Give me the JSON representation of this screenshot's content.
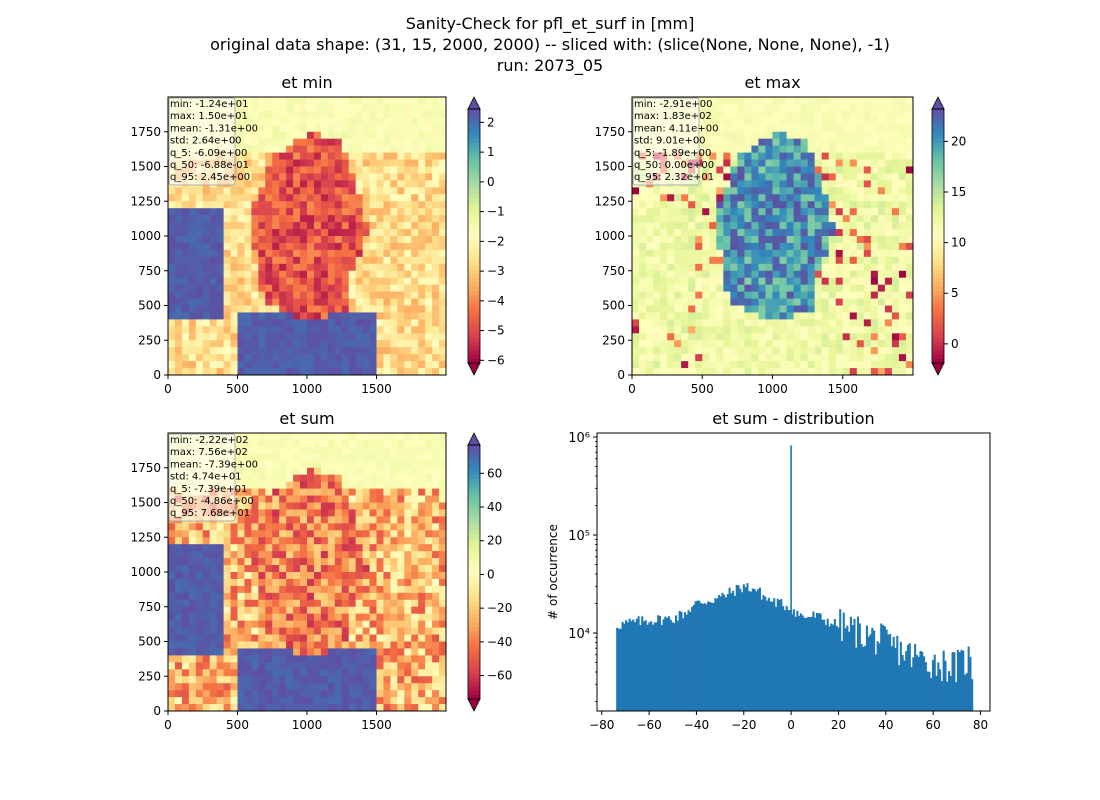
{
  "figure": {
    "title_lines": [
      "Sanity-Check for pfl_et_surf in [mm]",
      "original data shape: (31, 15, 2000, 2000) -- sliced with: (slice(None, None, None), -1)",
      "run: 2073_05"
    ]
  },
  "chart_data": [
    {
      "type": "heatmap",
      "title": "et min",
      "colormap": "Spectral",
      "xticks": [
        0,
        500,
        1000,
        1500
      ],
      "yticks": [
        0,
        250,
        500,
        750,
        1000,
        1250,
        1500,
        1750
      ],
      "xlim": [
        0,
        2000
      ],
      "ylim": [
        0,
        2000
      ],
      "colorbar": {
        "ticks": [
          2,
          1,
          0,
          -1,
          -2,
          -3,
          -4,
          -5,
          -6
        ],
        "tick_labels": [
          "2",
          "1",
          "0",
          "−1",
          "−2",
          "−3",
          "−4",
          "−5",
          "−6"
        ],
        "range": [
          -6.09,
          2.45
        ]
      },
      "stats": [
        "min: -1.24e+01",
        "max: 1.50e+01",
        "mean: -1.31e+00",
        "std: 2.64e+00",
        "q_5: -6.09e+00",
        "q_50: -6.88e-01",
        "q_95: 2.45e+00"
      ]
    },
    {
      "type": "heatmap",
      "title": "et max",
      "colormap": "Spectral",
      "xticks": [
        0,
        500,
        1000,
        1500
      ],
      "yticks": [
        0,
        250,
        500,
        750,
        1000,
        1250,
        1500,
        1750
      ],
      "xlim": [
        0,
        2000
      ],
      "ylim": [
        0,
        2000
      ],
      "colorbar": {
        "ticks": [
          20,
          15,
          10,
          5,
          0
        ],
        "tick_labels": [
          "20",
          "15",
          "10",
          "5",
          "0"
        ],
        "range": [
          -1.89,
          23.2
        ]
      },
      "stats": [
        "min: -2.91e+00",
        "max: 1.83e+02",
        "mean: 4.11e+00",
        "std: 9.01e+00",
        "q_5: -1.89e+00",
        "q_50: 0.00e+00",
        "q_95: 2.32e+01"
      ]
    },
    {
      "type": "heatmap",
      "title": "et sum",
      "colormap": "Spectral",
      "xticks": [
        0,
        500,
        1000,
        1500
      ],
      "yticks": [
        0,
        250,
        500,
        750,
        1000,
        1250,
        1500,
        1750
      ],
      "xlim": [
        0,
        2000
      ],
      "ylim": [
        0,
        2000
      ],
      "colorbar": {
        "ticks": [
          60,
          40,
          20,
          0,
          -20,
          -40,
          -60
        ],
        "tick_labels": [
          "60",
          "40",
          "20",
          "0",
          "−20",
          "−40",
          "−60"
        ],
        "range": [
          -73.9,
          76.8
        ]
      },
      "stats": [
        "min: -2.22e+02",
        "max: 7.56e+02",
        "mean: -7.39e+00",
        "std: 4.74e+01",
        "q_5: -7.39e+01",
        "q_50: -4.86e+00",
        "q_95: 7.68e+01"
      ]
    },
    {
      "type": "bar",
      "title": "et sum - distribution",
      "xlabel": "",
      "ylabel": "# of occurrence",
      "yscale": "log",
      "xlim": [
        -82,
        84
      ],
      "ylim": [
        1600,
        1100000
      ],
      "xticks": [
        -80,
        -60,
        -40,
        -20,
        0,
        20,
        40,
        60,
        80
      ],
      "xtick_labels": [
        "−80",
        "−60",
        "−40",
        "−20",
        "0",
        "20",
        "40",
        "60",
        "80"
      ],
      "yticks": [
        10000,
        100000,
        1000000
      ],
      "ytick_labels": [
        "10⁴",
        "10⁵",
        "10⁶"
      ],
      "color": "#1f77b4",
      "bins": {
        "start": -73.9,
        "end": 76.8,
        "count": 200
      },
      "anchors": [
        [
          -73.9,
          12000
        ],
        [
          -70,
          12500
        ],
        [
          -60,
          13500
        ],
        [
          -50,
          14000
        ],
        [
          -45,
          16000
        ],
        [
          -40,
          20000
        ],
        [
          -30,
          23000
        ],
        [
          -20,
          30000
        ],
        [
          -15,
          28000
        ],
        [
          -10,
          22000
        ],
        [
          -5,
          20000
        ],
        [
          -1,
          18500
        ],
        [
          5,
          14500
        ],
        [
          10,
          15000
        ],
        [
          20,
          12000
        ],
        [
          30,
          10000
        ],
        [
          40,
          8000
        ],
        [
          50,
          6000
        ],
        [
          60,
          5000
        ],
        [
          70,
          4500
        ],
        [
          75,
          5500
        ],
        [
          76.8,
          3500
        ]
      ],
      "spike": {
        "x": 0,
        "y": 820000
      }
    }
  ]
}
